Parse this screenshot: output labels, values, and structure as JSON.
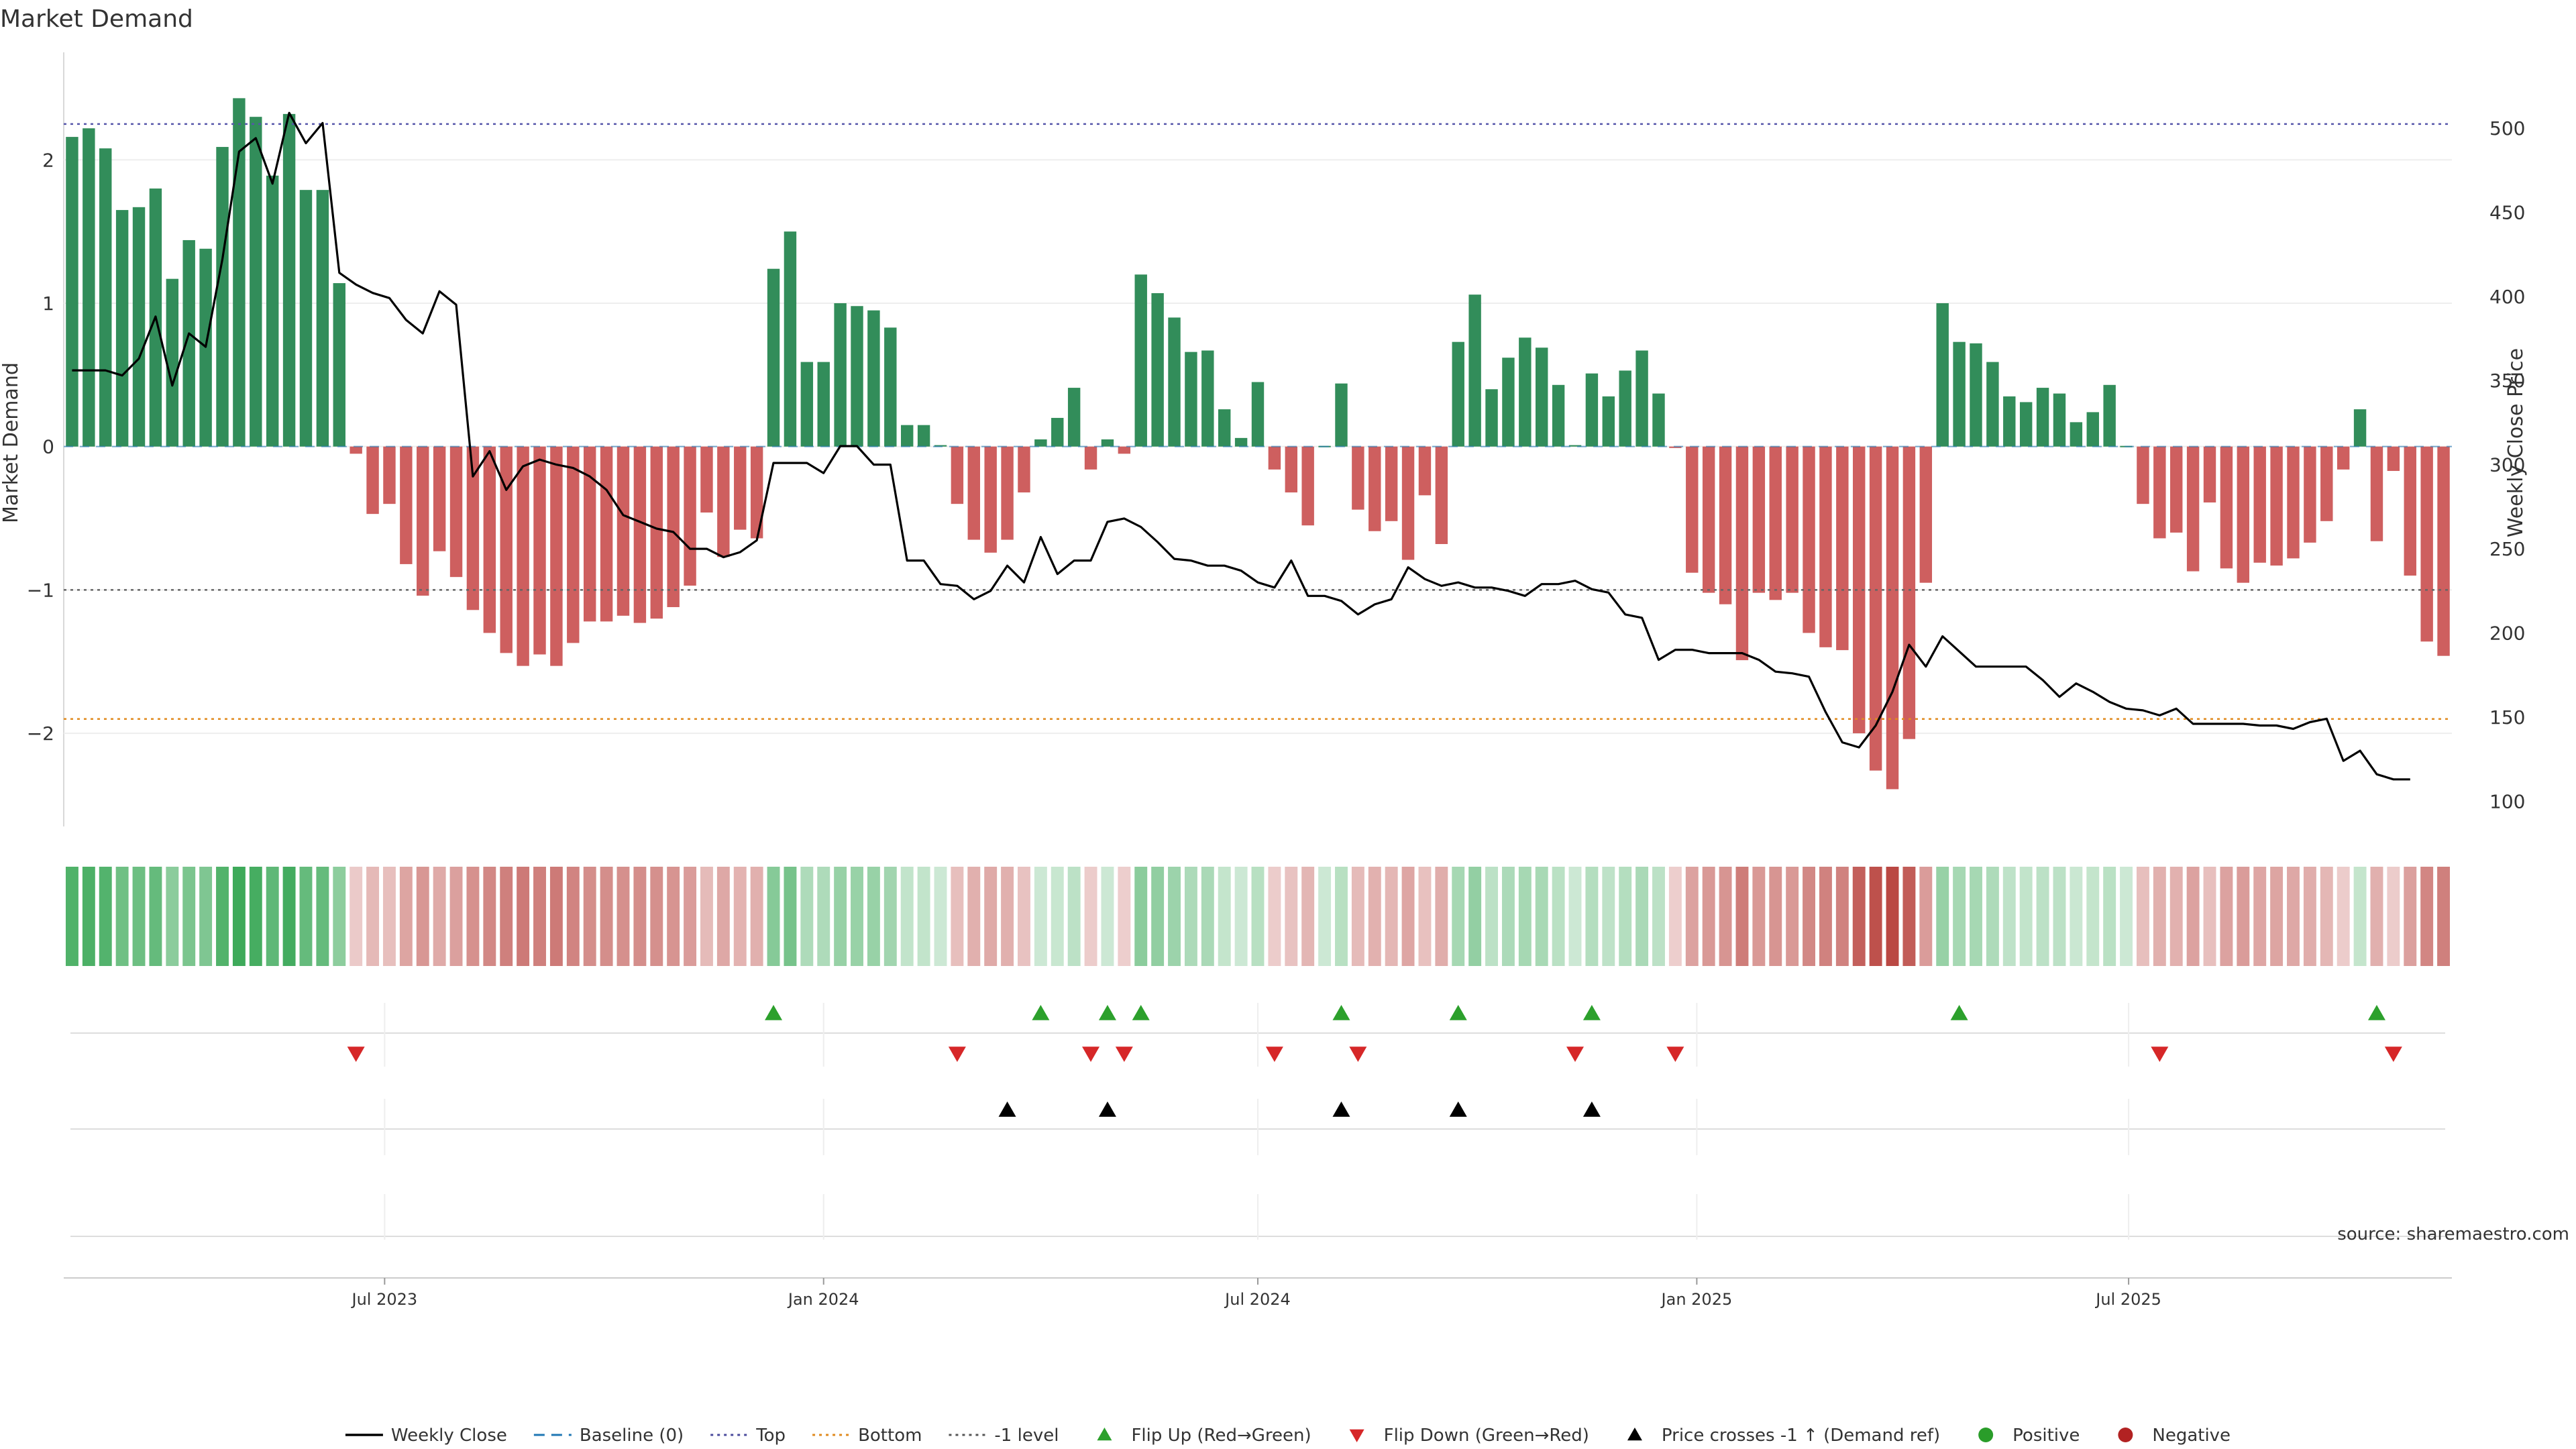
{
  "chart_data": {
    "type": "bar",
    "title": "Market Demand",
    "ylabel_left": "Market Demand",
    "ylabel_right": "Weekly Close Price",
    "source": "source: sharemaestro.com",
    "x_start": "2023-02-20",
    "x_step_days": 7,
    "ylim_left": [
      -2.65,
      2.75
    ],
    "ylim_right": [
      85,
      545
    ],
    "yticks_left": [
      2,
      1,
      0,
      -1,
      -2
    ],
    "ytick_labels_left": [
      "2",
      "1",
      "0",
      "−1",
      "−2"
    ],
    "yticks_right": [
      500,
      450,
      400,
      350,
      300,
      250,
      200,
      150,
      100
    ],
    "xticks": [
      {
        "date": "2023-07-01",
        "label": "Jul 2023"
      },
      {
        "date": "2024-01-01",
        "label": "Jan 2024"
      },
      {
        "date": "2024-07-01",
        "label": "Jul 2024"
      },
      {
        "date": "2025-01-01",
        "label": "Jan 2025"
      },
      {
        "date": "2025-07-01",
        "label": "Jul 2025"
      }
    ],
    "reference_lines": {
      "top": 2.25,
      "bottom": -1.9,
      "minus_one": -1,
      "baseline": 0
    },
    "demand": [
      2.16,
      2.22,
      2.08,
      1.65,
      1.67,
      1.8,
      1.17,
      1.44,
      1.38,
      2.09,
      2.43,
      2.3,
      1.89,
      2.32,
      1.79,
      1.79,
      1.14,
      -0.05,
      -0.47,
      -0.4,
      -0.82,
      -1.04,
      -0.73,
      -0.91,
      -1.14,
      -1.3,
      -1.44,
      -1.53,
      -1.45,
      -1.53,
      -1.37,
      -1.22,
      -1.22,
      -1.18,
      -1.23,
      -1.2,
      -1.12,
      -0.97,
      -0.46,
      -0.77,
      -0.58,
      -0.64,
      1.24,
      1.5,
      0.59,
      0.59,
      1.0,
      0.98,
      0.95,
      0.83,
      0.15,
      0.15,
      0.01,
      -0.4,
      -0.65,
      -0.74,
      -0.65,
      -0.32,
      0.05,
      0.2,
      0.41,
      -0.16,
      0.05,
      -0.05,
      1.2,
      1.07,
      0.9,
      0.66,
      0.67,
      0.26,
      0.06,
      0.45,
      -0.16,
      -0.32,
      -0.55,
      0.0,
      0.44,
      -0.44,
      -0.59,
      -0.52,
      -0.79,
      -0.34,
      -0.68,
      0.73,
      1.06,
      0.4,
      0.62,
      0.76,
      0.69,
      0.43,
      0.01,
      0.51,
      0.35,
      0.53,
      0.67,
      0.37,
      -0.01,
      -0.88,
      -1.02,
      -1.1,
      -1.49,
      -1.02,
      -1.07,
      -1.02,
      -1.3,
      -1.4,
      -1.42,
      -2.0,
      -2.26,
      -2.39,
      -2.04,
      -0.95,
      1.0,
      0.73,
      0.72,
      0.59,
      0.35,
      0.31,
      0.41,
      0.37,
      0.17,
      0.24,
      0.43,
      0.0,
      -0.4,
      -0.64,
      -0.6,
      -0.87,
      -0.39,
      -0.85,
      -0.95,
      -0.81,
      -0.83,
      -0.78,
      -0.67,
      -0.52,
      -0.16,
      0.26,
      -0.66,
      -0.17,
      -0.9,
      -1.36,
      -1.46
    ],
    "weekly_close": [
      356,
      356,
      356,
      353,
      363,
      388,
      347,
      378,
      370,
      422,
      486,
      494,
      467,
      509,
      491,
      503,
      414,
      407,
      402,
      399,
      386,
      378,
      403,
      395,
      293,
      308,
      285,
      299,
      303,
      300,
      298,
      293,
      285,
      270,
      266,
      262,
      260,
      250,
      250,
      245,
      248,
      255,
      301,
      301,
      301,
      295,
      311,
      311,
      300,
      300,
      243,
      243,
      229,
      228,
      220,
      225,
      240,
      230,
      257,
      235,
      243,
      243,
      266,
      268,
      263,
      254,
      244,
      243,
      240,
      240,
      237,
      230,
      227,
      243,
      222,
      222,
      219,
      211,
      217,
      220,
      239,
      232,
      228,
      230,
      227,
      227,
      225,
      222,
      229,
      229,
      231,
      226,
      224,
      211,
      209,
      184,
      190,
      190,
      188,
      188,
      188,
      184,
      177,
      176,
      174,
      153,
      135,
      132,
      145,
      165,
      193,
      180,
      198,
      189,
      180,
      180,
      180,
      180,
      172,
      162,
      170,
      165,
      159,
      155,
      154,
      151,
      155,
      146,
      146,
      146,
      146,
      145,
      145,
      143,
      147,
      149,
      124,
      130,
      116,
      113,
      113
    ],
    "heat_intensity": [
      0.86,
      0.88,
      0.83,
      0.66,
      0.67,
      0.72,
      0.47,
      0.58,
      0.55,
      0.84,
      0.97,
      0.92,
      0.76,
      0.93,
      0.72,
      0.72,
      0.46,
      0.08,
      0.19,
      0.16,
      0.33,
      0.42,
      0.29,
      0.36,
      0.46,
      0.52,
      0.58,
      0.61,
      0.58,
      0.61,
      0.55,
      0.49,
      0.49,
      0.47,
      0.49,
      0.48,
      0.45,
      0.39,
      0.18,
      0.31,
      0.23,
      0.26,
      0.5,
      0.6,
      0.24,
      0.24,
      0.4,
      0.39,
      0.38,
      0.33,
      0.12,
      0.12,
      0.05,
      0.16,
      0.26,
      0.3,
      0.26,
      0.13,
      0.05,
      0.08,
      0.16,
      0.06,
      0.05,
      0.05,
      0.48,
      0.43,
      0.36,
      0.26,
      0.27,
      0.1,
      0.05,
      0.18,
      0.06,
      0.13,
      0.22,
      0.05,
      0.18,
      0.18,
      0.24,
      0.21,
      0.32,
      0.14,
      0.27,
      0.29,
      0.42,
      0.16,
      0.25,
      0.3,
      0.28,
      0.17,
      0.05,
      0.2,
      0.14,
      0.21,
      0.27,
      0.15,
      0.05,
      0.35,
      0.41,
      0.44,
      0.6,
      0.41,
      0.43,
      0.41,
      0.52,
      0.56,
      0.57,
      0.8,
      0.9,
      0.96,
      0.82,
      0.38,
      0.4,
      0.29,
      0.29,
      0.24,
      0.14,
      0.12,
      0.16,
      0.15,
      0.07,
      0.1,
      0.17,
      0.05,
      0.16,
      0.26,
      0.24,
      0.35,
      0.16,
      0.34,
      0.38,
      0.32,
      0.33,
      0.31,
      0.27,
      0.21,
      0.06,
      0.1,
      0.26,
      0.07,
      0.36,
      0.54,
      0.58
    ],
    "flip_up_weeks": [
      42,
      58,
      62,
      64,
      76,
      83,
      91,
      113,
      138
    ],
    "flip_down_weeks": [
      17,
      53,
      61,
      63,
      72,
      77,
      90,
      96,
      125,
      139
    ],
    "price_cross_weeks": [
      56,
      62,
      76,
      83,
      91
    ],
    "legend": [
      {
        "label": "Weekly Close",
        "kind": "line",
        "color": "#000000"
      },
      {
        "label": "Baseline (0)",
        "kind": "dash",
        "color": "#1f77b4"
      },
      {
        "label": "Top",
        "kind": "dot",
        "color": "#4a4a9c"
      },
      {
        "label": "Bottom",
        "kind": "dot",
        "color": "#e08a1e"
      },
      {
        "label": "-1 level",
        "kind": "dot",
        "color": "#555555"
      },
      {
        "label": "Flip Up (Red→Green)",
        "kind": "tri-up",
        "color": "#2ca02c"
      },
      {
        "label": "Flip Down (Green→Red)",
        "kind": "tri-down",
        "color": "#d62728"
      },
      {
        "label": "Price crosses -1 ↑ (Demand ref)",
        "kind": "tri-up",
        "color": "#000000"
      },
      {
        "label": "Positive",
        "kind": "dot-marker",
        "color": "#2a9d2a"
      },
      {
        "label": "Negative",
        "kind": "dot-marker",
        "color": "#b22222"
      }
    ],
    "colors": {
      "positive": "#2e8b57",
      "negative": "#cd5c5c"
    }
  }
}
